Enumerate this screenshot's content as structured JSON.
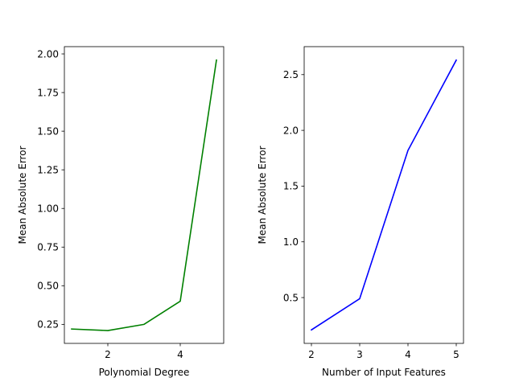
{
  "chart_data": [
    {
      "type": "line",
      "xlabel": "Polynomial Degree",
      "ylabel": "Mean Absolute Error",
      "x": [
        1,
        2,
        3,
        4,
        5
      ],
      "series": [
        {
          "color": "#008000",
          "values": [
            0.22,
            0.21,
            0.25,
            0.4,
            1.96
          ]
        }
      ],
      "xlim": [
        0.8,
        5.2
      ],
      "ylim": [
        0.127,
        2.047
      ],
      "xticks": [
        2,
        4
      ],
      "xtick_labels": [
        "2",
        "4"
      ],
      "yticks": [
        0.25,
        0.5,
        0.75,
        1.0,
        1.25,
        1.5,
        1.75,
        2.0
      ],
      "ytick_labels": [
        "0.25",
        "0.50",
        "0.75",
        "1.00",
        "1.25",
        "1.50",
        "1.75",
        "2.00"
      ],
      "grid": false,
      "legend": "none"
    },
    {
      "type": "line",
      "xlabel": "Number of Input Features",
      "ylabel": "Mean Absolute Error",
      "x": [
        2,
        3,
        4,
        5
      ],
      "series": [
        {
          "color": "#0000ff",
          "values": [
            0.21,
            0.49,
            1.82,
            2.63
          ]
        }
      ],
      "xlim": [
        1.85,
        5.15
      ],
      "ylim": [
        0.089,
        2.751
      ],
      "xticks": [
        2,
        3,
        4,
        5
      ],
      "xtick_labels": [
        "2",
        "3",
        "4",
        "5"
      ],
      "yticks": [
        0.5,
        1.0,
        1.5,
        2.0,
        2.5
      ],
      "ytick_labels": [
        "0.5",
        "1.0",
        "1.5",
        "2.0",
        "2.5"
      ],
      "grid": false,
      "legend": "none"
    }
  ]
}
